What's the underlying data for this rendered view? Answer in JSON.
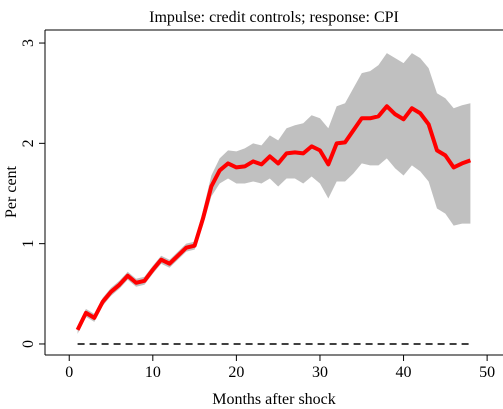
{
  "chart_data": {
    "type": "line",
    "title": "Impulse: credit controls; response: CPI",
    "xlabel": "Months after shock",
    "ylabel": "Per cent",
    "x": [
      1,
      2,
      3,
      4,
      5,
      6,
      7,
      8,
      9,
      10,
      11,
      12,
      13,
      14,
      15,
      16,
      17,
      18,
      19,
      20,
      21,
      22,
      23,
      24,
      25,
      26,
      27,
      28,
      29,
      30,
      31,
      32,
      33,
      34,
      35,
      36,
      37,
      38,
      39,
      40,
      41,
      42,
      43,
      44,
      45,
      46,
      47,
      48
    ],
    "series": [
      {
        "name": "CPI",
        "color": "#ff0000",
        "values": [
          0.14,
          0.31,
          0.26,
          0.42,
          0.52,
          0.59,
          0.68,
          0.61,
          0.63,
          0.74,
          0.84,
          0.8,
          0.88,
          0.96,
          0.98,
          1.25,
          1.57,
          1.73,
          1.8,
          1.76,
          1.77,
          1.82,
          1.79,
          1.87,
          1.8,
          1.9,
          1.91,
          1.9,
          1.97,
          1.93,
          1.79,
          2.0,
          2.01,
          2.13,
          2.25,
          2.25,
          2.27,
          2.37,
          2.29,
          2.24,
          2.35,
          2.3,
          2.19,
          1.93,
          1.88,
          1.76,
          1.8,
          1.83
        ]
      }
    ],
    "band": {
      "color": "#c0c0c0",
      "lower": [
        0.1,
        0.27,
        0.22,
        0.38,
        0.48,
        0.55,
        0.64,
        0.57,
        0.59,
        0.7,
        0.8,
        0.76,
        0.84,
        0.92,
        0.94,
        1.18,
        1.47,
        1.6,
        1.65,
        1.6,
        1.6,
        1.62,
        1.6,
        1.65,
        1.57,
        1.65,
        1.65,
        1.6,
        1.67,
        1.6,
        1.45,
        1.62,
        1.62,
        1.7,
        1.8,
        1.78,
        1.78,
        1.85,
        1.75,
        1.68,
        1.78,
        1.72,
        1.62,
        1.35,
        1.3,
        1.18,
        1.2,
        1.2
      ],
      "upper": [
        0.18,
        0.35,
        0.3,
        0.46,
        0.56,
        0.63,
        0.72,
        0.65,
        0.67,
        0.78,
        0.88,
        0.84,
        0.92,
        1.0,
        1.02,
        1.33,
        1.68,
        1.85,
        1.93,
        1.92,
        1.95,
        2.0,
        1.98,
        2.08,
        2.03,
        2.15,
        2.18,
        2.2,
        2.28,
        2.25,
        2.15,
        2.37,
        2.4,
        2.55,
        2.7,
        2.72,
        2.78,
        2.9,
        2.85,
        2.8,
        2.9,
        2.85,
        2.75,
        2.5,
        2.45,
        2.35,
        2.38,
        2.4
      ]
    },
    "hline": 0,
    "xlim": [
      -2.9,
      51.9
    ],
    "ylim": [
      -0.11,
      3.13
    ],
    "xticks": [
      0,
      10,
      20,
      30,
      40,
      50
    ],
    "yticks": [
      0,
      1,
      2,
      3
    ]
  }
}
